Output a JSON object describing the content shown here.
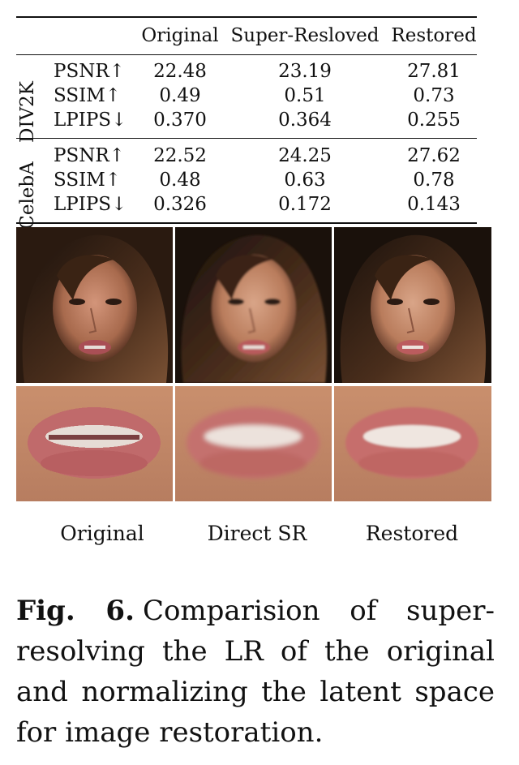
{
  "table": {
    "columns": [
      "Original",
      "Super-Resloved",
      "Restored"
    ],
    "groups": [
      {
        "name": "DIV2K",
        "rows": [
          {
            "metric": "PSNR↑",
            "values": [
              "22.48",
              "23.19",
              "27.81"
            ]
          },
          {
            "metric": "SSIM↑",
            "values": [
              "0.49",
              "0.51",
              "0.73"
            ]
          },
          {
            "metric": "LPIPS↓",
            "values": [
              "0.370",
              "0.364",
              "0.255"
            ]
          }
        ]
      },
      {
        "name": "CelebA",
        "rows": [
          {
            "metric": "PSNR↑",
            "values": [
              "22.52",
              "24.25",
              "27.62"
            ]
          },
          {
            "metric": "SSIM↑",
            "values": [
              "0.48",
              "0.63",
              "0.78"
            ]
          },
          {
            "metric": "LPIPS↓",
            "values": [
              "0.326",
              "0.172",
              "0.143"
            ]
          }
        ]
      }
    ]
  },
  "images": {
    "sub_captions": [
      "Original",
      "Direct SR",
      "Restored"
    ]
  },
  "caption": {
    "label": "Fig. 6.",
    "text": "Comparision of super-resolving the LR of the original and normalizing the latent space for image restoration."
  },
  "colors": {
    "text": "#111111",
    "background": "#ffffff",
    "hair": "#3a2416",
    "skin": "#c99172",
    "lips": "#b85a5c",
    "teeth": "#e8dcd6"
  }
}
